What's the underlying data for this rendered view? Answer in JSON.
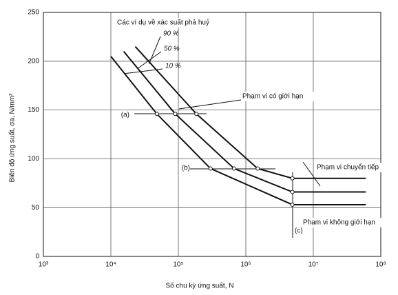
{
  "chart_data": {
    "type": "line",
    "xlabel": "Số chu kỳ ứng suất, N",
    "ylabel": "Biên độ ứng suất, σa, N/mm²",
    "xscale": "log",
    "xlim": [
      1000,
      100000000
    ],
    "xticks": [
      {
        "value": 1000,
        "label": "10³"
      },
      {
        "value": 10000,
        "label": "10⁴"
      },
      {
        "value": 100000,
        "label": "10⁵"
      },
      {
        "value": 1000000,
        "label": "10⁶"
      },
      {
        "value": 10000000,
        "label": "10⁷"
      },
      {
        "value": 100000000,
        "label": "10⁸"
      }
    ],
    "ylim": [
      0,
      250
    ],
    "yticks": [
      0,
      50,
      100,
      150,
      200,
      250
    ],
    "grid": true,
    "series": [
      {
        "name": "90 %",
        "color": "#111111",
        "x": [
          23000,
          185000,
          1500000,
          4900000,
          60000000
        ],
        "values": [
          215,
          146,
          90,
          80,
          80
        ]
      },
      {
        "name": "50 %",
        "color": "#111111",
        "x": [
          15500,
          90000,
          670000,
          4900000,
          60000000
        ],
        "values": [
          210,
          146,
          90,
          66,
          66
        ]
      },
      {
        "name": "10 %",
        "color": "#111111",
        "x": [
          10000,
          48000,
          300000,
          4900000,
          60000000
        ],
        "values": [
          205,
          146,
          90,
          53,
          53
        ]
      }
    ],
    "annotations": [
      "Các ví dụ về xác suất phá huỷ",
      "Phạm vi có giới hạn",
      "Phạm vi chuyển tiếp",
      "Phạm vi không giới hạn",
      "(a)",
      "(b)",
      "(c)"
    ]
  }
}
